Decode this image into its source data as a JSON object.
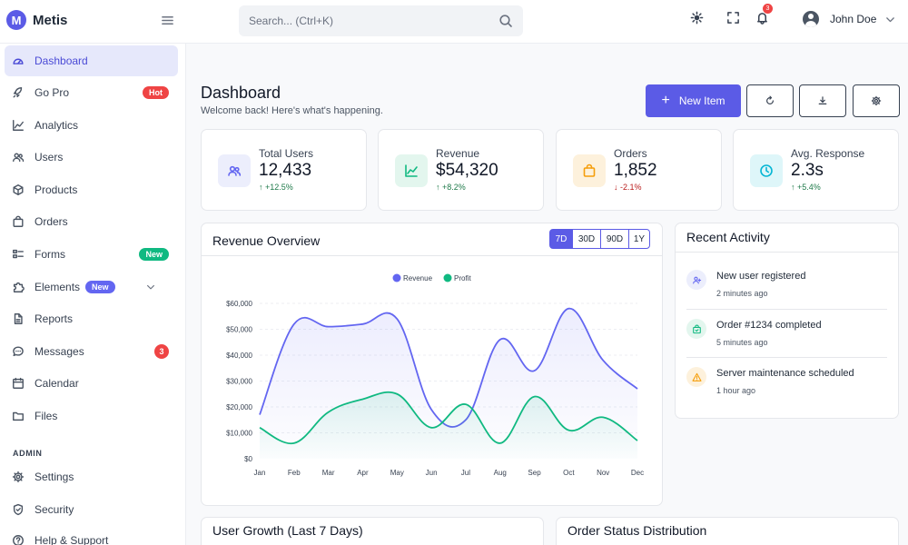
{
  "brand": {
    "logo_letter": "M",
    "name": "Metis"
  },
  "search": {
    "placeholder": "Search... (Ctrl+K)"
  },
  "topbar": {
    "notification_count": "3",
    "user_name": "John Doe"
  },
  "sidebar": {
    "items": [
      {
        "label": "Dashboard",
        "icon": "gauge-icon",
        "active": true
      },
      {
        "label": "Go Pro",
        "icon": "rocket-icon",
        "badge": "Hot",
        "badge_color": "#ef4444"
      },
      {
        "label": "Analytics",
        "icon": "chart-line-icon"
      },
      {
        "label": "Users",
        "icon": "users-icon"
      },
      {
        "label": "Products",
        "icon": "box-icon"
      },
      {
        "label": "Orders",
        "icon": "bag-icon"
      },
      {
        "label": "Forms",
        "icon": "form-icon",
        "badge": "New",
        "badge_color": "#10b981"
      },
      {
        "label": "Elements",
        "icon": "puzzle-icon",
        "badge": "New",
        "badge_color": "#6366f1"
      },
      {
        "label": "Reports",
        "icon": "file-icon"
      },
      {
        "label": "Messages",
        "icon": "chat-icon",
        "badge": "3",
        "badge_color": "#ef4444"
      },
      {
        "label": "Calendar",
        "icon": "calendar-icon"
      },
      {
        "label": "Files",
        "icon": "folder-icon"
      }
    ],
    "admin_heading": "ADMIN",
    "admin_items": [
      {
        "label": "Settings",
        "icon": "gear-icon"
      },
      {
        "label": "Security",
        "icon": "shield-icon"
      },
      {
        "label": "Help & Support",
        "icon": "help-icon"
      }
    ]
  },
  "header": {
    "title": "Dashboard",
    "subtitle": "Welcome back! Here's what's happening.",
    "new_item_label": "New Item"
  },
  "stats": [
    {
      "label": "Total Users",
      "value": "12,433",
      "delta": "+12.5%",
      "trend": "up",
      "icon": "users-icon",
      "color": "#6366f1",
      "bg": "#eceefc"
    },
    {
      "label": "Revenue",
      "value": "$54,320",
      "delta": "+8.2%",
      "trend": "up",
      "icon": "chart-line-icon",
      "color": "#10b981",
      "bg": "#e3f6ee"
    },
    {
      "label": "Orders",
      "value": "1,852",
      "delta": "-2.1%",
      "trend": "down",
      "icon": "bag-icon",
      "color": "#f59e0b",
      "bg": "#fdf1dc"
    },
    {
      "label": "Avg. Response",
      "value": "2.3s",
      "delta": "+5.4%",
      "trend": "up",
      "icon": "clock-icon",
      "color": "#06b6d4",
      "bg": "#def6f9"
    }
  ],
  "revenue_overview": {
    "title": "Revenue Overview",
    "ranges": [
      "7D",
      "30D",
      "90D",
      "1Y"
    ],
    "active_range": "7D"
  },
  "chart_data": {
    "type": "line",
    "categories": [
      "Jan",
      "Feb",
      "Mar",
      "Apr",
      "May",
      "Jun",
      "Jul",
      "Aug",
      "Sep",
      "Oct",
      "Nov",
      "Dec"
    ],
    "series": [
      {
        "name": "Revenue",
        "color": "#6366f1",
        "values": [
          17000,
          52000,
          51000,
          52000,
          54000,
          19000,
          15000,
          46000,
          34000,
          58000,
          38000,
          27000
        ]
      },
      {
        "name": "Profit",
        "color": "#10b981",
        "values": [
          12000,
          6000,
          18000,
          23000,
          25000,
          12000,
          21000,
          6000,
          24000,
          11000,
          16000,
          7000
        ]
      }
    ],
    "yticks": [
      "$0",
      "$10,000",
      "$20,000",
      "$30,000",
      "$40,000",
      "$50,000",
      "$60,000"
    ],
    "ylim": [
      0,
      60000
    ],
    "legend": "top-center",
    "grid": true
  },
  "activity": {
    "title": "Recent Activity",
    "items": [
      {
        "title": "New user registered",
        "time": "2 minutes ago",
        "icon": "user-plus-icon",
        "color": "#6366f1",
        "bg": "#eceefc"
      },
      {
        "title": "Order #1234 completed",
        "time": "5 minutes ago",
        "icon": "bag-check-icon",
        "color": "#10b981",
        "bg": "#e3f6ee"
      },
      {
        "title": "Server maintenance scheduled",
        "time": "1 hour ago",
        "icon": "warning-icon",
        "color": "#f59e0b",
        "bg": "#fdf1dc"
      }
    ]
  },
  "bottom_cards": {
    "user_growth_title": "User Growth (Last 7 Days)",
    "order_status_title": "Order Status Distribution"
  }
}
